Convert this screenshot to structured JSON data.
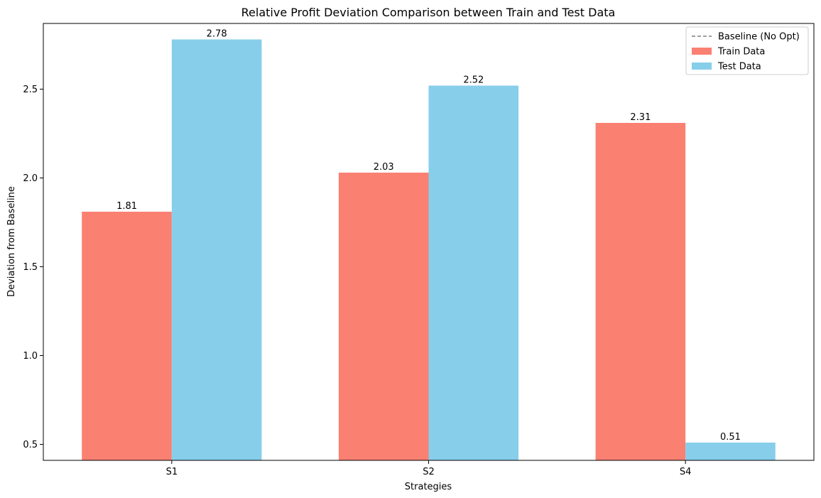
{
  "chart_data": {
    "type": "bar",
    "title": "Relative Profit Deviation Comparison between Train and Test Data",
    "xlabel": "Strategies",
    "ylabel": "Deviation from Baseline",
    "categories": [
      "S1",
      "S2",
      "S4"
    ],
    "series": [
      {
        "name": "Train Data",
        "values": [
          1.81,
          2.03,
          2.31
        ],
        "color": "#fa8072"
      },
      {
        "name": "Test Data",
        "values": [
          2.78,
          2.52,
          0.51
        ],
        "color": "#87ceeb"
      }
    ],
    "baseline": {
      "name": "Baseline (No Opt)",
      "value": 0,
      "style": "dashed",
      "color": "#808080"
    },
    "ylim": [
      0.41,
      2.87
    ],
    "yticks": [
      "0.5",
      "1.0",
      "1.5",
      "2.0",
      "2.5"
    ],
    "grid": false,
    "legend_position": "top-right"
  }
}
